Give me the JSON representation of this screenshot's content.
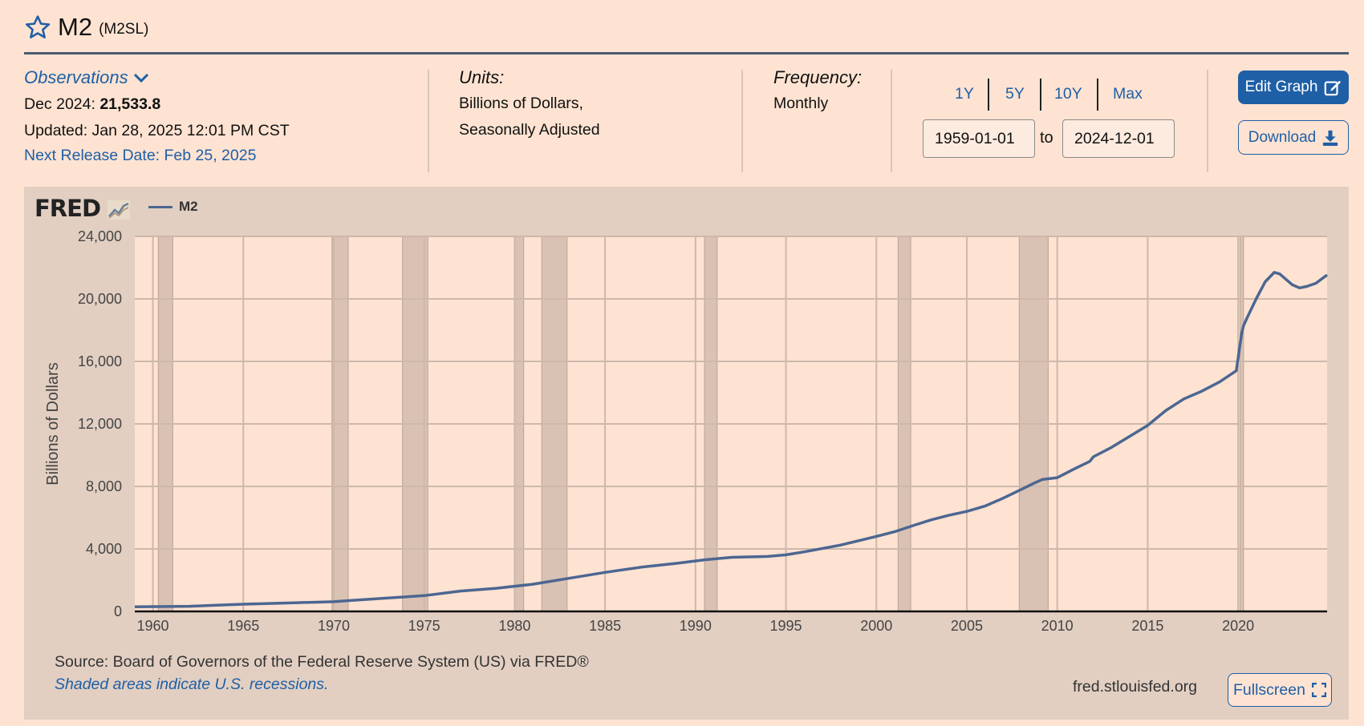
{
  "header": {
    "title": "M2",
    "code": "(M2SL)"
  },
  "observations": {
    "toggle_label": "Observations",
    "date_label": "Dec 2024:",
    "value": "21,533.8",
    "updated": "Updated: Jan 28, 2025 12:01 PM CST",
    "next_release": "Next Release Date: Feb 25, 2025"
  },
  "units": {
    "label": "Units:",
    "line1": "Billions of Dollars,",
    "line2": "Seasonally Adjusted"
  },
  "frequency": {
    "label": "Frequency:",
    "value": "Monthly"
  },
  "range": {
    "buttons": [
      "1Y",
      "5Y",
      "10Y",
      "Max"
    ],
    "start": "1959-01-01",
    "to_label": "to",
    "end": "2024-12-01"
  },
  "actions": {
    "edit_label": "Edit Graph",
    "download_label": "Download",
    "fullscreen_label": "Fullscreen"
  },
  "footer": {
    "source": "Source: Board of Governors of the Federal Reserve System (US) via FRED®",
    "recession_note": "Shaded areas indicate U.S. recessions.",
    "site": "fred.stlouisfed.org"
  },
  "logo": {
    "text": "FRED"
  },
  "colors": {
    "background": "#fee3d2",
    "panel": "#e2cfc2",
    "accent": "#1f5fa6",
    "series": "#4c6691",
    "recession": "#d9c2b3"
  },
  "icons": [
    "star-icon",
    "chevron-down-icon",
    "edit-icon",
    "download-icon",
    "fullscreen-icon",
    "fred-chart-icon"
  ],
  "chart_data": {
    "type": "line",
    "title": "",
    "xlabel": "",
    "ylabel": "Billions of Dollars",
    "legend": [
      "M2"
    ],
    "legend_position": "top-left",
    "grid": true,
    "xlim": [
      1959.0,
      2024.92
    ],
    "ylim": [
      0,
      24000
    ],
    "x_ticks": [
      1960,
      1965,
      1970,
      1975,
      1980,
      1985,
      1990,
      1995,
      2000,
      2005,
      2010,
      2015,
      2020
    ],
    "y_ticks": [
      0,
      4000,
      8000,
      12000,
      16000,
      20000,
      24000
    ],
    "y_tick_labels": [
      "0",
      "4,000",
      "8,000",
      "12,000",
      "16,000",
      "20,000",
      "24,000"
    ],
    "recessions": [
      [
        1960.3,
        1961.1
      ],
      [
        1969.9,
        1970.8
      ],
      [
        1973.8,
        1975.2
      ],
      [
        1980.0,
        1980.5
      ],
      [
        1981.5,
        1982.9
      ],
      [
        1990.5,
        1991.2
      ],
      [
        2001.2,
        2001.9
      ],
      [
        2007.9,
        2009.5
      ],
      [
        2020.1,
        2020.3
      ]
    ],
    "series": [
      {
        "name": "M2",
        "x": [
          1959.0,
          1962.0,
          1965.0,
          1968.0,
          1970.0,
          1971.0,
          1973.0,
          1975.0,
          1977.0,
          1979.0,
          1981.0,
          1983.0,
          1985.0,
          1987.0,
          1989.0,
          1990.5,
          1992.0,
          1994.0,
          1995.0,
          1996.0,
          1998.0,
          2000.0,
          2001.0,
          2002.0,
          2003.0,
          2004.0,
          2005.0,
          2006.0,
          2007.0,
          2008.0,
          2008.8,
          2009.2,
          2010.0,
          2011.0,
          2011.8,
          2012.0,
          2013.0,
          2014.0,
          2015.0,
          2016.0,
          2017.0,
          2018.0,
          2019.0,
          2019.9,
          2020.2,
          2020.3,
          2020.5,
          2021.0,
          2021.5,
          2022.0,
          2022.3,
          2023.0,
          2023.4,
          2023.8,
          2024.3,
          2024.92
        ],
        "y": [
          290,
          330,
          460,
          560,
          620,
          710,
          860,
          1010,
          1300,
          1480,
          1740,
          2120,
          2500,
          2830,
          3080,
          3300,
          3460,
          3520,
          3620,
          3810,
          4240,
          4800,
          5100,
          5480,
          5850,
          6150,
          6400,
          6740,
          7240,
          7800,
          8250,
          8450,
          8560,
          9150,
          9600,
          9900,
          10500,
          11200,
          11900,
          12850,
          13600,
          14100,
          14700,
          15400,
          17800,
          18300,
          18800,
          20000,
          21100,
          21700,
          21600,
          20900,
          20700,
          20800,
          21000,
          21533.8
        ]
      }
    ]
  }
}
